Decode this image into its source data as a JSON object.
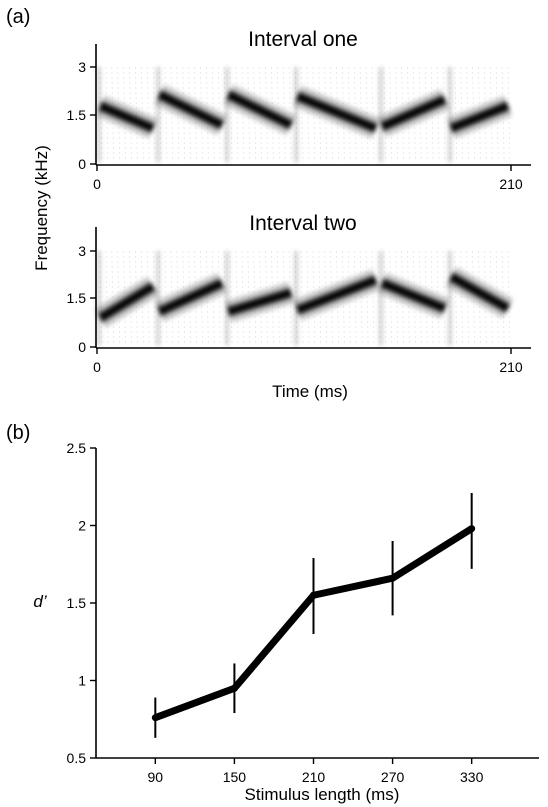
{
  "chart_data": [
    {
      "type": "spectrogram",
      "panel_label": "(a)",
      "ylabel": "Frequency (kHz)",
      "xlabel": "Time (ms)",
      "yticks": [
        "0",
        "1.5",
        "3"
      ],
      "ylim": [
        0,
        3.5
      ],
      "xticks": [
        "0",
        "210"
      ],
      "xlim": [
        0,
        220
      ],
      "intervals": [
        {
          "title": "Interval one",
          "segments": [
            {
              "t0": 0,
              "t1": 30,
              "f0": 1.8,
              "f1": 1.1
            },
            {
              "t0": 30,
              "t1": 65,
              "f0": 2.15,
              "f1": 1.2
            },
            {
              "t0": 65,
              "t1": 100,
              "f0": 2.15,
              "f1": 1.2
            },
            {
              "t0": 100,
              "t1": 143,
              "f0": 2.1,
              "f1": 1.1
            },
            {
              "t0": 143,
              "t1": 178,
              "f0": 1.15,
              "f1": 2.0
            },
            {
              "t0": 178,
              "t1": 210,
              "f0": 1.1,
              "f1": 1.8
            }
          ]
        },
        {
          "title": "Interval two",
          "segments": [
            {
              "t0": 0,
              "t1": 30,
              "f0": 0.9,
              "f1": 1.9
            },
            {
              "t0": 30,
              "t1": 65,
              "f0": 1.1,
              "f1": 2.0
            },
            {
              "t0": 65,
              "t1": 100,
              "f0": 1.1,
              "f1": 1.7
            },
            {
              "t0": 100,
              "t1": 143,
              "f0": 1.15,
              "f1": 2.1
            },
            {
              "t0": 143,
              "t1": 178,
              "f0": 2.0,
              "f1": 1.2
            },
            {
              "t0": 178,
              "t1": 210,
              "f0": 2.2,
              "f1": 1.2
            }
          ]
        }
      ]
    },
    {
      "type": "line",
      "panel_label": "(b)",
      "xlabel": "Stimulus length (ms)",
      "ylabel": "d’",
      "x": [
        90,
        150,
        210,
        270,
        330
      ],
      "xticks": [
        "90",
        "150",
        "210",
        "270",
        "330"
      ],
      "yticks": [
        "0.5",
        "1",
        "1.5",
        "2",
        "2.5"
      ],
      "series": [
        {
          "values": [
            0.76,
            0.95,
            1.55,
            1.66,
            1.98
          ],
          "error_low": [
            0.63,
            0.79,
            1.3,
            1.42,
            1.72
          ],
          "error_high": [
            0.89,
            1.11,
            1.79,
            1.9,
            2.21
          ]
        }
      ],
      "xlim": [
        45,
        375
      ],
      "ylim": [
        0.5,
        2.5
      ]
    }
  ]
}
